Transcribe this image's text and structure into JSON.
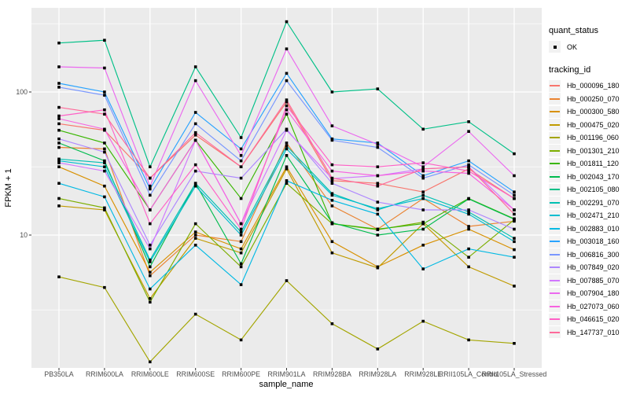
{
  "figure": {
    "background": "#FFFFFF",
    "panel_background": "#EBEBEB",
    "gridline_color": "#FFFFFF",
    "axis_text_color": "#4D4D4D",
    "tick_mark_color": "#333333",
    "point_color": "#000000",
    "legend_key_background": "#F2F2F2"
  },
  "legend": {
    "quant_status_title": "quant_status",
    "quant_status_items": [
      {
        "label": "OK"
      }
    ],
    "tracking_id_title": "tracking_id"
  },
  "chart_data": {
    "type": "line",
    "title": "",
    "xlabel": "sample_name",
    "ylabel": "FPKM + 1",
    "legend_position": "right",
    "grid": true,
    "y_scale": "log10",
    "y_axis_ticks": [
      100,
      10
    ],
    "y_minor_gridlines": [
      300,
      30,
      3
    ],
    "ylim_approx": [
      1.15,
      390
    ],
    "x_categories": [
      "PB350LA",
      "RRIM600LA",
      "RRIM600LE",
      "RRIM600SE",
      "RRIM600PE",
      "RRIM901LA",
      "RRIM928BA",
      "RRIM928LA",
      "RRIM928LE",
      "RRII105LA_Control",
      "RRII105LA_Stressed"
    ],
    "series": [
      {
        "tracking_id": "Hb_000096_180",
        "color": "#F8766D",
        "values": [
          60,
          54,
          25,
          50,
          30,
          85,
          24,
          23,
          20,
          29,
          18
        ]
      },
      {
        "tracking_id": "Hb_000250_070",
        "color": "#EA8331",
        "values": [
          41,
          40,
          5.2,
          10,
          9,
          44,
          16,
          11,
          18,
          11.5,
          12.5
        ]
      },
      {
        "tracking_id": "Hb_000300_580",
        "color": "#D89000",
        "values": [
          30,
          22,
          5.5,
          10.5,
          8,
          30,
          9,
          6,
          8.5,
          11,
          7.9
        ]
      },
      {
        "tracking_id": "Hb_000475_020",
        "color": "#C09B00",
        "values": [
          16,
          15,
          3.6,
          9.5,
          7.5,
          29,
          7.5,
          5.9,
          12,
          6,
          4.4
        ]
      },
      {
        "tracking_id": "Hb_001196_060",
        "color": "#A3A500",
        "values": [
          5.1,
          4.3,
          1.3,
          2.8,
          1.85,
          4.8,
          2.4,
          1.6,
          2.5,
          1.85,
          1.75
        ]
      },
      {
        "tracking_id": "Hb_001301_210",
        "color": "#7CAE00",
        "values": [
          18,
          15.5,
          3.4,
          12,
          6,
          23,
          12,
          10.9,
          12.3,
          7,
          12.8
        ]
      },
      {
        "tracking_id": "Hb_001811_120",
        "color": "#39B600",
        "values": [
          54,
          44,
          15,
          46,
          18,
          70,
          12,
          11,
          12,
          18,
          13
        ]
      },
      {
        "tracking_id": "Hb_002043_170",
        "color": "#00BB4E",
        "values": [
          44,
          33,
          6,
          23,
          6.3,
          36,
          12.2,
          10,
          11,
          17.9,
          12.9
        ]
      },
      {
        "tracking_id": "Hb_002105_080",
        "color": "#00C087",
        "values": [
          220,
          230,
          30,
          150,
          48,
          310,
          100,
          105,
          55,
          62,
          37
        ]
      },
      {
        "tracking_id": "Hb_002291_070",
        "color": "#00C0B2",
        "values": [
          34,
          32,
          6.7,
          23,
          10.5,
          42,
          19.5,
          15,
          19,
          14.5,
          9.5
        ]
      },
      {
        "tracking_id": "Hb_002471_210",
        "color": "#00BDD0",
        "values": [
          33,
          30,
          6.5,
          22,
          10,
          40,
          19,
          15.3,
          18,
          14,
          9
        ]
      },
      {
        "tracking_id": "Hb_002883_010",
        "color": "#00B9E3",
        "values": [
          23,
          18.5,
          4.2,
          8.5,
          4.5,
          24,
          17.5,
          14,
          5.8,
          8,
          7
        ]
      },
      {
        "tracking_id": "Hb_003018_160",
        "color": "#29A3FF",
        "values": [
          115,
          100,
          21,
          72,
          40,
          135,
          47,
          44,
          26,
          33,
          20
        ]
      },
      {
        "tracking_id": "Hb_006816_300",
        "color": "#7997FF",
        "values": [
          108,
          95,
          19,
          60,
          33,
          120,
          46,
          41,
          25,
          31,
          19
        ]
      },
      {
        "tracking_id": "Hb_007849_020",
        "color": "#AE87FF",
        "values": [
          47,
          38,
          8.5,
          28,
          25,
          55,
          23,
          17,
          15,
          15,
          11
        ]
      },
      {
        "tracking_id": "Hb_007885_070",
        "color": "#D277FF",
        "values": [
          32,
          28,
          8,
          46,
          12,
          54,
          24.8,
          26,
          29,
          30,
          15
        ]
      },
      {
        "tracking_id": "Hb_007904_180",
        "color": "#EB69EF",
        "values": [
          150,
          147,
          22,
          120,
          36,
          200,
          58,
          43,
          30,
          53,
          26
        ]
      },
      {
        "tracking_id": "Hb_027073_060",
        "color": "#F763E0",
        "values": [
          65,
          55,
          15,
          46,
          12,
          75,
          28,
          26,
          28,
          27,
          15
        ]
      },
      {
        "tracking_id": "Hb_046615_020",
        "color": "#FF61C7",
        "values": [
          68,
          75,
          12,
          31,
          11,
          80,
          31,
          30,
          32,
          28,
          18
        ]
      },
      {
        "tracking_id": "Hb_147737_010",
        "color": "#FF6A9A",
        "values": [
          78,
          70,
          25,
          52,
          30,
          88,
          25,
          22,
          29,
          30,
          14
        ]
      }
    ]
  }
}
